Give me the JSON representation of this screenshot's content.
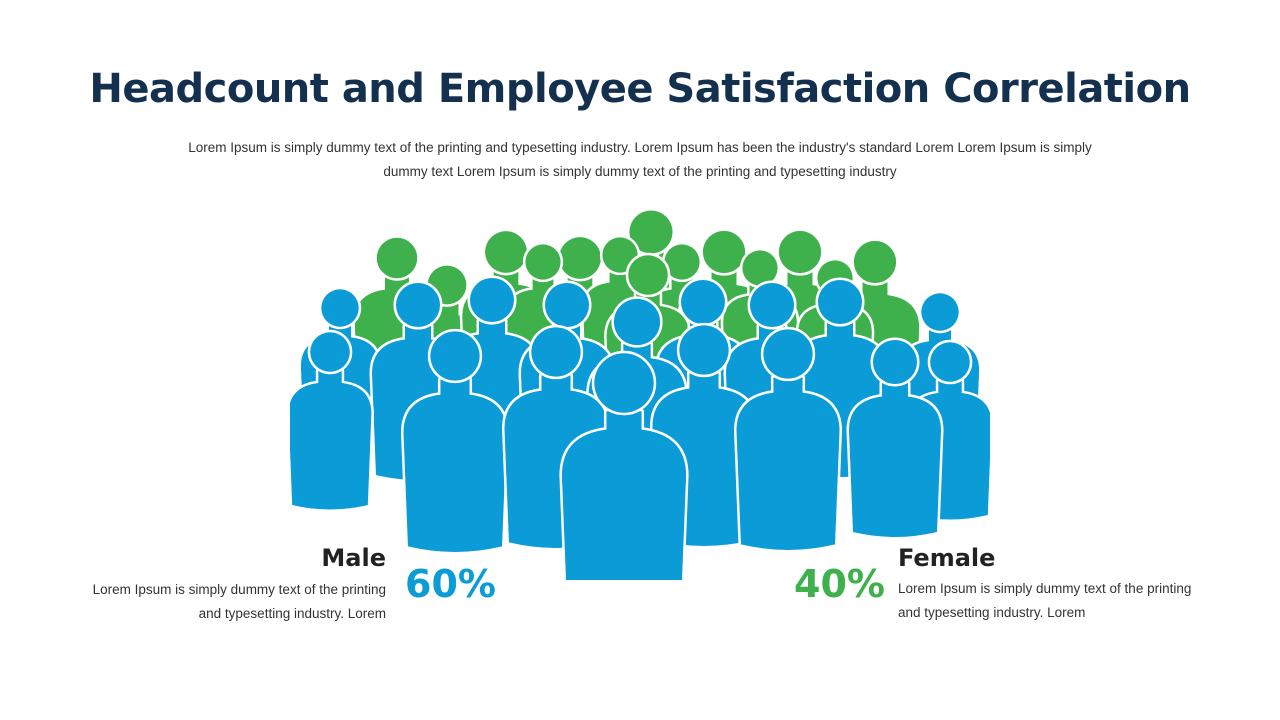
{
  "slide": {
    "title": "Headcount and Employee Satisfaction Correlation",
    "subtitle": "Lorem Ipsum is simply dummy text of the printing and typesetting industry. Lorem Ipsum has been the industry's standard Lorem Lorem Ipsum is simply dummy text Lorem Ipsum is simply dummy text of the printing and typesetting industry"
  },
  "male": {
    "label": "Male",
    "percent": "60%",
    "description": "Lorem Ipsum is simply dummy text of the printing and typesetting industry. Lorem",
    "color": "#0b9bd6"
  },
  "female": {
    "label": "Female",
    "percent": "40%",
    "description": "Lorem Ipsum is simply dummy text of the printing and typesetting industry. Lorem",
    "color": "#3fb14c"
  },
  "crowd_icon": "people-crowd-icon"
}
